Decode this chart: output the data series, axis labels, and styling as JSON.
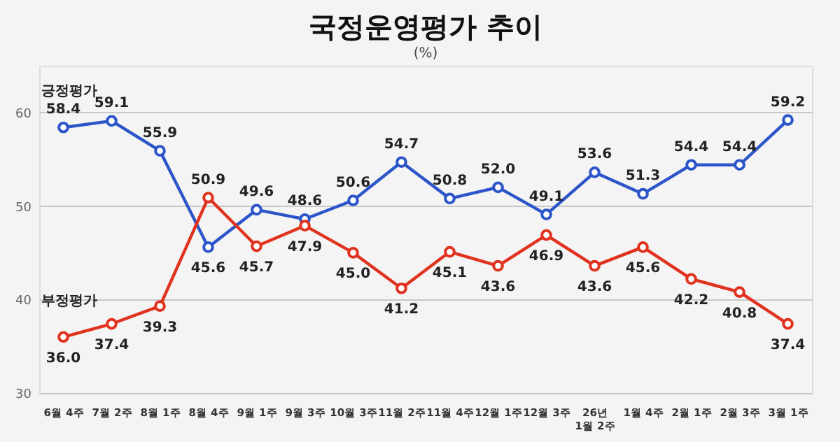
{
  "chart_data": {
    "type": "line",
    "title": "국정운영평가 추이",
    "subtitle": "(%)",
    "categories": [
      "6월 4주",
      "7월 2주",
      "8월 1주",
      "8월 4주",
      "9월 1주",
      "9월 3주",
      "10월 3주",
      "11월 2주",
      "11월 4주",
      "12월 1주",
      "12월 3주",
      "26년\n1월 2주",
      "1월 4주",
      "2월 1주",
      "2월 3주",
      "3월 1주"
    ],
    "series": [
      {
        "name": "긍정평가",
        "color": "#2b55c8",
        "values": [
          58.4,
          59.1,
          55.9,
          45.6,
          49.6,
          48.6,
          50.6,
          54.7,
          50.8,
          52.0,
          49.1,
          53.6,
          51.3,
          54.4,
          54.4,
          59.2
        ],
        "value_labels": [
          "58.4",
          "59.1",
          "55.9",
          "45.6",
          "49.6",
          "48.6",
          "50.6",
          "54.7",
          "50.8",
          "52.0",
          "49.1",
          "53.6",
          "51.3",
          "54.4",
          "54.4",
          "59.2"
        ]
      },
      {
        "name": "부정평가",
        "color": "#e0321e",
        "values": [
          36.0,
          37.4,
          39.3,
          50.9,
          45.7,
          47.9,
          45.0,
          41.2,
          45.1,
          43.6,
          46.9,
          43.6,
          45.6,
          42.2,
          40.8,
          37.4
        ],
        "value_labels": [
          "36.0",
          "37.4",
          "39.3",
          "50.9",
          "45.7",
          "47.9",
          "45.0",
          "41.2",
          "45.1",
          "43.6",
          "46.9",
          "43.6",
          "45.6",
          "42.2",
          "40.8",
          "37.4"
        ]
      }
    ],
    "ylim": [
      30,
      65
    ],
    "yticks": [
      30,
      40,
      50,
      60
    ],
    "grid": "y",
    "legend": false,
    "marker": "circle",
    "line_style": "solid"
  }
}
